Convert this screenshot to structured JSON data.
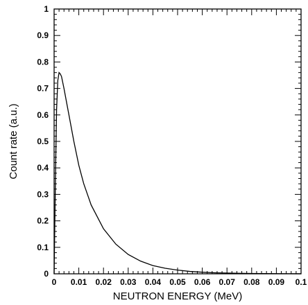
{
  "chart_data": {
    "type": "line",
    "xlabel": "NEUTRON ENERGY (MeV)",
    "ylabel": "Count rate (a.u.)",
    "xlim": [
      0,
      0.1
    ],
    "ylim": [
      0,
      1
    ],
    "grid": false,
    "x_ticks": [
      "0",
      "0.01",
      "0.02",
      "0.03",
      "0.04",
      "0.05",
      "0.06",
      "0.07",
      "0.08",
      "0.09",
      "0.1"
    ],
    "y_ticks": [
      "0",
      "0.1",
      "0.2",
      "0.3",
      "0.4",
      "0.5",
      "0.6",
      "0.7",
      "0.8",
      "0.9",
      "1"
    ],
    "series": [
      {
        "color": "#000000",
        "x": [
          0,
          0.0003,
          0.0007,
          0.001,
          0.0015,
          0.002,
          0.0025,
          0.003,
          0.004,
          0.005,
          0.006,
          0.008,
          0.01,
          0.012,
          0.015,
          0.02,
          0.025,
          0.03,
          0.035,
          0.04,
          0.045,
          0.05,
          0.055,
          0.06,
          0.065,
          0.07,
          0.075,
          0.08,
          0.085,
          0.09,
          0.095,
          0.1
        ],
        "y": [
          0,
          0.2,
          0.45,
          0.62,
          0.73,
          0.76,
          0.755,
          0.745,
          0.7,
          0.65,
          0.6,
          0.5,
          0.41,
          0.34,
          0.26,
          0.17,
          0.112,
          0.073,
          0.048,
          0.031,
          0.021,
          0.014,
          0.009,
          0.006,
          0.004,
          0.003,
          0.002,
          0.0012,
          0.0008,
          0.0005,
          0.0003,
          0.0002
        ]
      }
    ]
  }
}
